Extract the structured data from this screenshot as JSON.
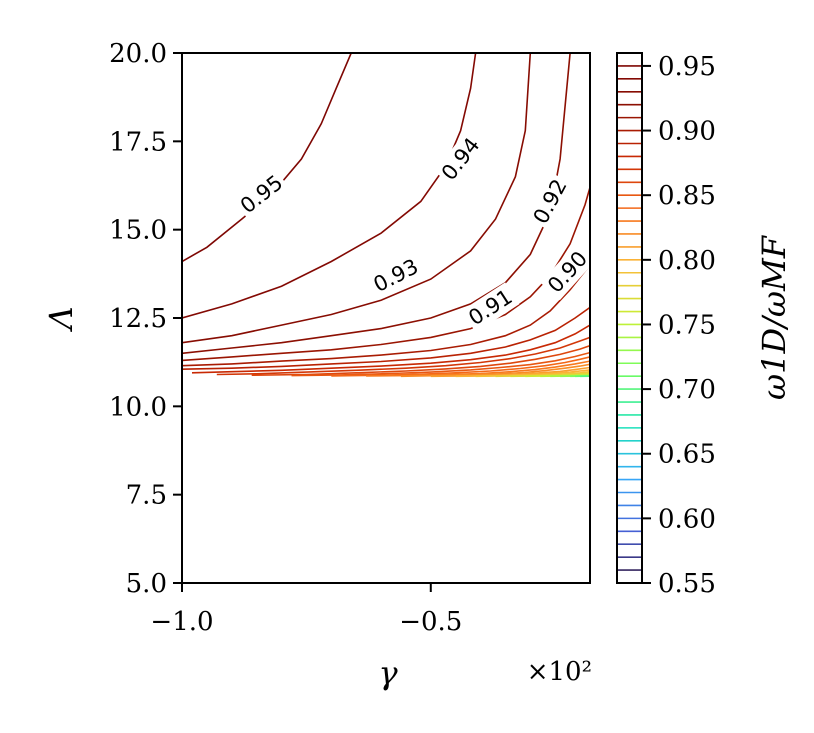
{
  "chart_data": {
    "type": "contour",
    "xlabel": "γ",
    "ylabel": "Λ",
    "x_multiplier": "×10²",
    "xlim": [
      -1.0,
      -0.18
    ],
    "ylim": [
      5.0,
      20.0
    ],
    "x_ticks": [
      -1.0,
      -0.5
    ],
    "x_tick_labels": [
      "−1.0",
      "−0.5"
    ],
    "y_ticks": [
      5.0,
      7.5,
      10.0,
      12.5,
      15.0,
      17.5,
      20.0
    ],
    "y_tick_labels": [
      "5.0",
      "7.5",
      "10.0",
      "12.5",
      "15.0",
      "17.5",
      "20.0"
    ],
    "colorbar": {
      "label": "ω1D/ωMF",
      "range": [
        0.55,
        0.96
      ],
      "ticks": [
        0.55,
        0.6,
        0.65,
        0.7,
        0.75,
        0.8,
        0.85,
        0.9,
        0.95
      ],
      "tick_labels": [
        "0.55",
        "0.60",
        "0.65",
        "0.70",
        "0.75",
        "0.80",
        "0.85",
        "0.90",
        "0.95"
      ],
      "levels": [
        0.55,
        0.56,
        0.57,
        0.58,
        0.59,
        0.6,
        0.61,
        0.62,
        0.63,
        0.64,
        0.65,
        0.66,
        0.67,
        0.68,
        0.69,
        0.7,
        0.71,
        0.72,
        0.73,
        0.74,
        0.75,
        0.76,
        0.77,
        0.78,
        0.79,
        0.8,
        0.81,
        0.82,
        0.83,
        0.84,
        0.85,
        0.86,
        0.87,
        0.88,
        0.89,
        0.9,
        0.91,
        0.92,
        0.93,
        0.94,
        0.95,
        0.96
      ]
    },
    "contours": [
      {
        "level": 0.95,
        "points": [
          [
            -1.0,
            14.1
          ],
          [
            -0.95,
            14.5
          ],
          [
            -0.88,
            15.3
          ],
          [
            -0.82,
            16.0
          ],
          [
            -0.76,
            17.0
          ],
          [
            -0.72,
            18.0
          ],
          [
            -0.69,
            19.0
          ],
          [
            -0.66,
            20.0
          ]
        ]
      },
      {
        "level": 0.94,
        "points": [
          [
            -1.0,
            12.5
          ],
          [
            -0.9,
            12.9
          ],
          [
            -0.8,
            13.4
          ],
          [
            -0.7,
            14.1
          ],
          [
            -0.6,
            14.9
          ],
          [
            -0.52,
            15.8
          ],
          [
            -0.47,
            16.8
          ],
          [
            -0.44,
            17.8
          ],
          [
            -0.42,
            19.0
          ],
          [
            -0.41,
            20.0
          ]
        ]
      },
      {
        "level": 0.93,
        "points": [
          [
            -1.0,
            11.8
          ],
          [
            -0.9,
            12.0
          ],
          [
            -0.8,
            12.3
          ],
          [
            -0.7,
            12.6
          ],
          [
            -0.6,
            13.0
          ],
          [
            -0.5,
            13.6
          ],
          [
            -0.42,
            14.4
          ],
          [
            -0.37,
            15.3
          ],
          [
            -0.33,
            16.5
          ],
          [
            -0.31,
            17.8
          ],
          [
            -0.3,
            20.0
          ]
        ]
      },
      {
        "level": 0.92,
        "points": [
          [
            -1.0,
            11.5
          ],
          [
            -0.9,
            11.65
          ],
          [
            -0.8,
            11.8
          ],
          [
            -0.7,
            12.0
          ],
          [
            -0.6,
            12.2
          ],
          [
            -0.5,
            12.5
          ],
          [
            -0.42,
            12.9
          ],
          [
            -0.35,
            13.5
          ],
          [
            -0.3,
            14.3
          ],
          [
            -0.26,
            15.5
          ],
          [
            -0.24,
            17.0
          ],
          [
            -0.23,
            18.5
          ],
          [
            -0.22,
            20.0
          ]
        ]
      },
      {
        "level": 0.91,
        "points": [
          [
            -1.0,
            11.3
          ],
          [
            -0.9,
            11.4
          ],
          [
            -0.8,
            11.5
          ],
          [
            -0.7,
            11.6
          ],
          [
            -0.6,
            11.75
          ],
          [
            -0.5,
            11.95
          ],
          [
            -0.42,
            12.2
          ],
          [
            -0.35,
            12.6
          ],
          [
            -0.3,
            13.1
          ],
          [
            -0.26,
            13.7
          ],
          [
            -0.22,
            14.6
          ],
          [
            -0.19,
            15.7
          ],
          [
            -0.18,
            16.2
          ]
        ]
      },
      {
        "level": 0.9,
        "points": [
          [
            -1.0,
            11.15
          ],
          [
            -0.9,
            11.2
          ],
          [
            -0.8,
            11.28
          ],
          [
            -0.7,
            11.35
          ],
          [
            -0.6,
            11.45
          ],
          [
            -0.5,
            11.58
          ],
          [
            -0.42,
            11.75
          ],
          [
            -0.35,
            12.0
          ],
          [
            -0.3,
            12.3
          ],
          [
            -0.26,
            12.7
          ],
          [
            -0.22,
            13.3
          ],
          [
            -0.18,
            14.0
          ]
        ]
      },
      {
        "level": 0.89,
        "points": [
          [
            -1.0,
            11.05
          ],
          [
            -0.9,
            11.08
          ],
          [
            -0.8,
            11.13
          ],
          [
            -0.7,
            11.2
          ],
          [
            -0.6,
            11.27
          ],
          [
            -0.5,
            11.37
          ],
          [
            -0.42,
            11.5
          ],
          [
            -0.35,
            11.68
          ],
          [
            -0.3,
            11.88
          ],
          [
            -0.25,
            12.15
          ],
          [
            -0.21,
            12.5
          ],
          [
            -0.18,
            12.8
          ]
        ]
      },
      {
        "level": 0.88,
        "points": [
          [
            -0.98,
            10.95
          ],
          [
            -0.9,
            10.98
          ],
          [
            -0.8,
            11.02
          ],
          [
            -0.7,
            11.08
          ],
          [
            -0.6,
            11.14
          ],
          [
            -0.5,
            11.22
          ],
          [
            -0.42,
            11.32
          ],
          [
            -0.35,
            11.45
          ],
          [
            -0.3,
            11.6
          ],
          [
            -0.25,
            11.8
          ],
          [
            -0.21,
            12.05
          ],
          [
            -0.18,
            12.3
          ]
        ]
      },
      {
        "level": 0.87,
        "points": [
          [
            -0.93,
            10.9
          ],
          [
            -0.85,
            10.92
          ],
          [
            -0.75,
            10.97
          ],
          [
            -0.65,
            11.02
          ],
          [
            -0.55,
            11.08
          ],
          [
            -0.47,
            11.15
          ],
          [
            -0.4,
            11.24
          ],
          [
            -0.34,
            11.35
          ],
          [
            -0.29,
            11.48
          ],
          [
            -0.24,
            11.65
          ],
          [
            -0.2,
            11.85
          ],
          [
            -0.18,
            11.95
          ]
        ]
      },
      {
        "level": 0.86,
        "points": [
          [
            -0.86,
            10.88
          ],
          [
            -0.75,
            10.9
          ],
          [
            -0.65,
            10.95
          ],
          [
            -0.55,
            11.0
          ],
          [
            -0.47,
            11.06
          ],
          [
            -0.4,
            11.13
          ],
          [
            -0.34,
            11.22
          ],
          [
            -0.29,
            11.33
          ],
          [
            -0.24,
            11.47
          ],
          [
            -0.2,
            11.62
          ],
          [
            -0.18,
            11.72
          ]
        ]
      },
      {
        "level": 0.85,
        "points": [
          [
            -0.78,
            10.87
          ],
          [
            -0.68,
            10.89
          ],
          [
            -0.58,
            10.93
          ],
          [
            -0.5,
            10.97
          ],
          [
            -0.42,
            11.03
          ],
          [
            -0.36,
            11.1
          ],
          [
            -0.3,
            11.18
          ],
          [
            -0.25,
            11.29
          ],
          [
            -0.21,
            11.41
          ],
          [
            -0.18,
            11.52
          ]
        ]
      },
      {
        "level": 0.84,
        "points": [
          [
            -0.7,
            10.86
          ],
          [
            -0.6,
            10.88
          ],
          [
            -0.52,
            10.91
          ],
          [
            -0.45,
            10.95
          ],
          [
            -0.38,
            11.0
          ],
          [
            -0.32,
            11.07
          ],
          [
            -0.27,
            11.15
          ],
          [
            -0.23,
            11.24
          ],
          [
            -0.2,
            11.33
          ],
          [
            -0.18,
            11.4
          ]
        ]
      },
      {
        "level": 0.83,
        "points": [
          [
            -0.63,
            10.86
          ],
          [
            -0.55,
            10.87
          ],
          [
            -0.47,
            10.9
          ],
          [
            -0.4,
            10.93
          ],
          [
            -0.34,
            10.98
          ],
          [
            -0.29,
            11.04
          ],
          [
            -0.25,
            11.11
          ],
          [
            -0.21,
            11.2
          ],
          [
            -0.18,
            11.28
          ]
        ]
      },
      {
        "level": 0.82,
        "points": [
          [
            -0.56,
            10.85
          ],
          [
            -0.48,
            10.87
          ],
          [
            -0.42,
            10.89
          ],
          [
            -0.36,
            10.92
          ],
          [
            -0.31,
            10.96
          ],
          [
            -0.27,
            11.01
          ],
          [
            -0.23,
            11.08
          ],
          [
            -0.2,
            11.14
          ],
          [
            -0.18,
            11.19
          ]
        ]
      },
      {
        "level": 0.81,
        "points": [
          [
            -0.5,
            10.85
          ],
          [
            -0.43,
            10.86
          ],
          [
            -0.37,
            10.88
          ],
          [
            -0.32,
            10.91
          ],
          [
            -0.28,
            10.95
          ],
          [
            -0.24,
            10.99
          ],
          [
            -0.21,
            11.04
          ],
          [
            -0.18,
            11.1
          ]
        ]
      },
      {
        "level": 0.8,
        "points": [
          [
            -0.45,
            10.85
          ],
          [
            -0.39,
            10.86
          ],
          [
            -0.34,
            10.88
          ],
          [
            -0.3,
            10.9
          ],
          [
            -0.26,
            10.93
          ],
          [
            -0.22,
            10.97
          ],
          [
            -0.18,
            11.03
          ]
        ]
      },
      {
        "level": 0.79,
        "points": [
          [
            -0.41,
            10.85
          ],
          [
            -0.36,
            10.86
          ],
          [
            -0.31,
            10.87
          ],
          [
            -0.27,
            10.89
          ],
          [
            -0.23,
            10.92
          ],
          [
            -0.2,
            10.95
          ],
          [
            -0.18,
            10.98
          ]
        ]
      },
      {
        "level": 0.78,
        "points": [
          [
            -0.37,
            10.85
          ],
          [
            -0.32,
            10.86
          ],
          [
            -0.28,
            10.87
          ],
          [
            -0.24,
            10.89
          ],
          [
            -0.21,
            10.91
          ],
          [
            -0.18,
            10.94
          ]
        ]
      },
      {
        "level": 0.77,
        "points": [
          [
            -0.34,
            10.85
          ],
          [
            -0.29,
            10.86
          ],
          [
            -0.25,
            10.87
          ],
          [
            -0.22,
            10.88
          ],
          [
            -0.18,
            10.91
          ]
        ]
      },
      {
        "level": 0.76,
        "points": [
          [
            -0.31,
            10.85
          ],
          [
            -0.27,
            10.86
          ],
          [
            -0.23,
            10.87
          ],
          [
            -0.2,
            10.88
          ],
          [
            -0.18,
            10.89
          ]
        ]
      },
      {
        "level": 0.75,
        "points": [
          [
            -0.28,
            10.85
          ],
          [
            -0.24,
            10.86
          ],
          [
            -0.21,
            10.87
          ],
          [
            -0.18,
            10.88
          ]
        ]
      },
      {
        "level": 0.74,
        "points": [
          [
            -0.26,
            10.85
          ],
          [
            -0.22,
            10.86
          ],
          [
            -0.18,
            10.87
          ]
        ]
      },
      {
        "level": 0.73,
        "points": [
          [
            -0.24,
            10.85
          ],
          [
            -0.2,
            10.86
          ],
          [
            -0.18,
            10.865
          ]
        ]
      },
      {
        "level": 0.72,
        "points": [
          [
            -0.22,
            10.85
          ],
          [
            -0.18,
            10.86
          ]
        ]
      },
      {
        "level": 0.71,
        "points": [
          [
            -0.21,
            10.85
          ],
          [
            -0.18,
            10.855
          ]
        ]
      },
      {
        "level": 0.7,
        "points": [
          [
            -0.2,
            10.85
          ],
          [
            -0.18,
            10.853
          ]
        ]
      }
    ],
    "contour_labels": [
      {
        "text": "0.95",
        "x": -0.84,
        "y": 16.0,
        "angle": -38
      },
      {
        "text": "0.94",
        "x": -0.44,
        "y": 17.0,
        "angle": -52
      },
      {
        "text": "0.93",
        "x": -0.57,
        "y": 13.7,
        "angle": -27
      },
      {
        "text": "0.92",
        "x": -0.26,
        "y": 15.8,
        "angle": -62
      },
      {
        "text": "0.91",
        "x": -0.38,
        "y": 12.8,
        "angle": -33
      },
      {
        "text": "0.90",
        "x": -0.225,
        "y": 13.8,
        "angle": -48
      }
    ]
  }
}
